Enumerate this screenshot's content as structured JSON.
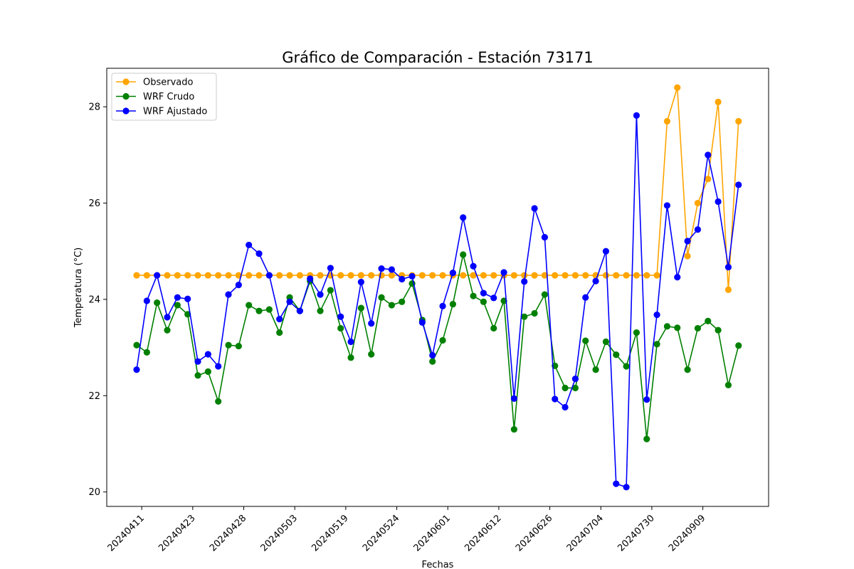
{
  "chart_data": {
    "type": "line",
    "title": "Gráfico de Comparación - Estación 73171",
    "xlabel": "Fechas",
    "ylabel": "Temperatura (°C)",
    "ylim": [
      19.7,
      28.8
    ],
    "yticks": [
      20,
      22,
      24,
      26,
      28
    ],
    "x_count": 60,
    "xticks": [
      {
        "index": 0.5,
        "label": "20240411"
      },
      {
        "index": 5.5,
        "label": "20240423"
      },
      {
        "index": 10.5,
        "label": "20240428"
      },
      {
        "index": 15.5,
        "label": "20240503"
      },
      {
        "index": 20.5,
        "label": "20240519"
      },
      {
        "index": 25.5,
        "label": "20240524"
      },
      {
        "index": 30.5,
        "label": "20240601"
      },
      {
        "index": 35.5,
        "label": "20240612"
      },
      {
        "index": 40.5,
        "label": "20240626"
      },
      {
        "index": 45.5,
        "label": "20240704"
      },
      {
        "index": 50.5,
        "label": "20240730"
      },
      {
        "index": 55.5,
        "label": "20240909"
      }
    ],
    "legend_position": "top-left",
    "series": [
      {
        "name": "Observado",
        "color": "#ffa500",
        "values": [
          24.5,
          24.5,
          24.5,
          24.5,
          24.5,
          24.5,
          24.5,
          24.5,
          24.5,
          24.5,
          24.5,
          24.5,
          24.5,
          24.5,
          24.5,
          24.5,
          24.5,
          24.5,
          24.5,
          24.5,
          24.5,
          24.5,
          24.5,
          24.5,
          24.5,
          24.5,
          24.5,
          24.5,
          24.5,
          24.5,
          24.5,
          24.5,
          24.5,
          24.5,
          24.5,
          24.5,
          24.5,
          24.5,
          24.5,
          24.5,
          24.5,
          24.5,
          24.5,
          24.5,
          24.5,
          24.5,
          24.5,
          24.5,
          24.5,
          24.5,
          24.5,
          24.5,
          27.7,
          28.4,
          24.9,
          26.0,
          26.5,
          28.1,
          24.2,
          27.7
        ]
      },
      {
        "name": "WRF Crudo",
        "color": "#008000",
        "values": [
          23.05,
          22.9,
          23.93,
          23.36,
          23.88,
          23.69,
          22.42,
          22.5,
          21.88,
          23.05,
          23.03,
          23.88,
          23.76,
          23.79,
          23.31,
          24.04,
          23.76,
          24.38,
          23.76,
          24.19,
          23.4,
          22.79,
          23.82,
          22.86,
          24.04,
          23.88,
          23.95,
          24.33,
          23.57,
          22.71,
          23.15,
          23.9,
          24.93,
          24.07,
          23.95,
          23.4,
          23.97,
          21.3,
          23.64,
          23.71,
          24.1,
          22.62,
          22.16,
          22.16,
          23.14,
          22.54,
          23.12,
          22.85,
          22.61,
          23.31,
          21.1,
          23.07,
          23.44,
          23.41,
          22.54,
          23.4,
          23.55,
          23.36,
          22.22,
          23.04
        ]
      },
      {
        "name": "WRF Ajustado",
        "color": "#0000ff",
        "values": [
          22.54,
          23.97,
          24.5,
          23.63,
          24.04,
          24.01,
          22.71,
          22.86,
          22.61,
          24.1,
          24.3,
          25.13,
          24.95,
          24.5,
          23.59,
          23.95,
          23.76,
          24.43,
          24.1,
          24.65,
          23.64,
          23.12,
          24.36,
          23.5,
          24.64,
          24.62,
          24.42,
          24.48,
          23.52,
          22.84,
          23.86,
          24.55,
          25.7,
          24.69,
          24.13,
          24.03,
          24.56,
          21.94,
          24.37,
          25.89,
          25.29,
          21.93,
          21.76,
          22.35,
          24.04,
          24.38,
          25.0,
          20.17,
          20.1,
          27.82,
          21.92,
          23.68,
          25.95,
          24.46,
          25.21,
          25.45,
          27.0,
          26.03,
          24.67,
          26.38
        ]
      }
    ]
  }
}
